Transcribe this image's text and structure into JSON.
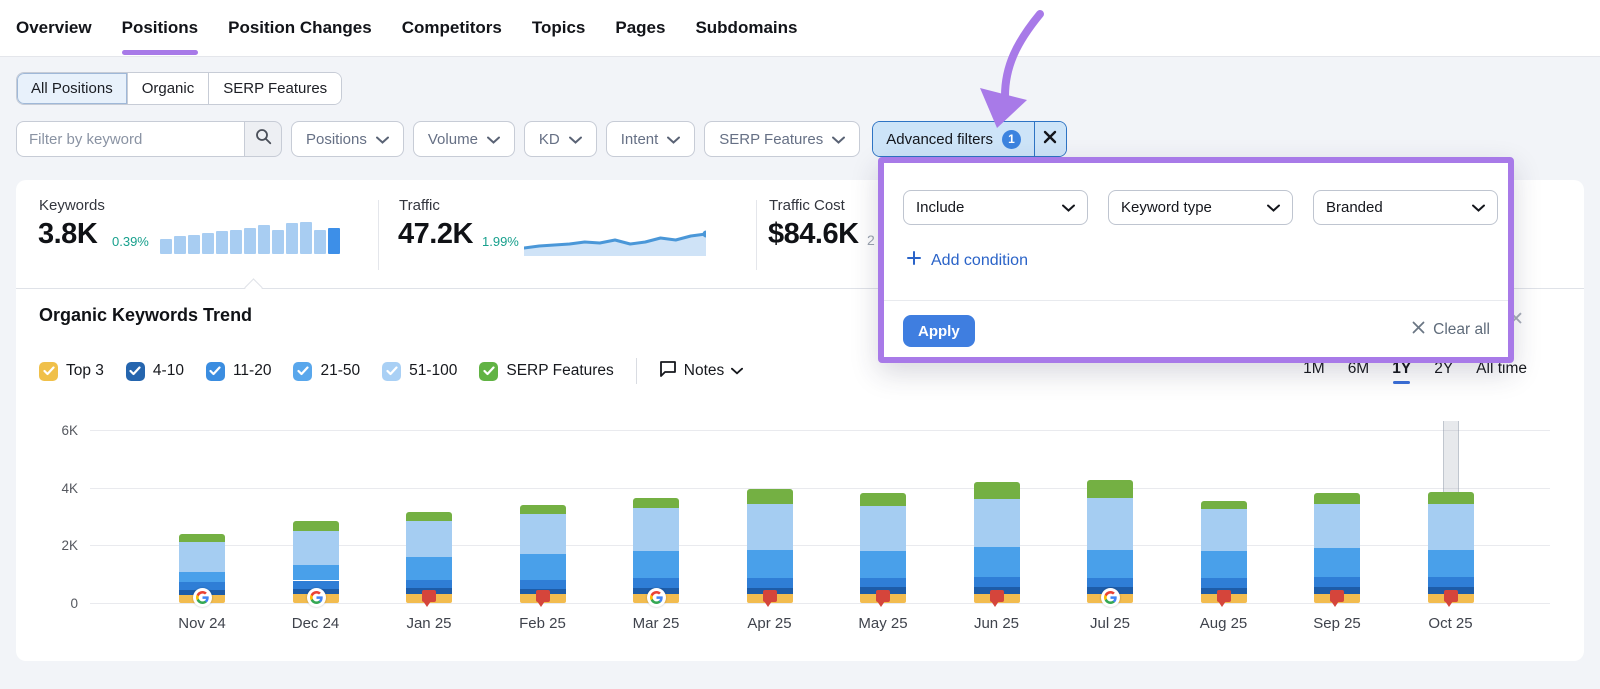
{
  "nav": {
    "items": [
      {
        "label": "Overview",
        "active": false
      },
      {
        "label": "Positions",
        "active": true
      },
      {
        "label": "Position Changes",
        "active": false
      },
      {
        "label": "Competitors",
        "active": false
      },
      {
        "label": "Topics",
        "active": false
      },
      {
        "label": "Pages",
        "active": false
      },
      {
        "label": "Subdomains",
        "active": false
      }
    ],
    "active_color": "#a87ae8"
  },
  "view_tabs": {
    "items": [
      {
        "label": "All Positions",
        "selected": true
      },
      {
        "label": "Organic",
        "selected": false
      },
      {
        "label": "SERP Features",
        "selected": false
      }
    ]
  },
  "filters": {
    "search": {
      "placeholder": "Filter by keyword",
      "value": ""
    },
    "dropdowns": [
      {
        "label": "Positions"
      },
      {
        "label": "Volume"
      },
      {
        "label": "KD"
      },
      {
        "label": "Intent"
      },
      {
        "label": "SERP Features"
      }
    ],
    "advanced": {
      "label": "Advanced filters",
      "count": "1"
    }
  },
  "stats": {
    "keywords": {
      "label": "Keywords",
      "value": "3.8K",
      "change": "0.39%",
      "change_color": "#18a08d",
      "spark_bar_heights": [
        15,
        18,
        19,
        21,
        23,
        24,
        26,
        29,
        24,
        31,
        32,
        24,
        26
      ],
      "spark_bar_color": "#a8cdf2",
      "spark_bar_last_color": "#3d8fe8"
    },
    "traffic": {
      "label": "Traffic",
      "value": "47.2K",
      "change": "1.99%",
      "change_color": "#18a08d",
      "spark_line_y": [
        14,
        13,
        12.5,
        12,
        11,
        11.5,
        10,
        12,
        11,
        9,
        10,
        8,
        7
      ],
      "spark_line_color": "#4a97d8",
      "spark_fill_color": "#cfe3f7"
    },
    "traffic_cost": {
      "label": "Traffic Cost",
      "value": "$84.6K",
      "partial_change": "2"
    }
  },
  "advanced_panel": {
    "operator": "Include",
    "field": "Keyword type",
    "value": "Branded",
    "add_condition_label": "Add condition",
    "apply_label": "Apply",
    "clear_all_label": "Clear all",
    "border_color": "#a87ae8"
  },
  "trend": {
    "title": "Organic Keywords Trend",
    "legend": [
      {
        "label": "Top 3",
        "color": "#f0c04a",
        "checked": true
      },
      {
        "label": "4-10",
        "color": "#2565ae",
        "checked": true
      },
      {
        "label": "11-20",
        "color": "#3b8de0",
        "checked": true
      },
      {
        "label": "21-50",
        "color": "#59a7ec",
        "checked": true
      },
      {
        "label": "51-100",
        "color": "#a9d0f5",
        "checked": true
      },
      {
        "label": "SERP Features",
        "color": "#61b344",
        "checked": true
      }
    ],
    "notes_label": "Notes",
    "ranges": [
      {
        "label": "1M",
        "active": false
      },
      {
        "label": "6M",
        "active": false
      },
      {
        "label": "1Y",
        "active": true
      },
      {
        "label": "2Y",
        "active": false
      },
      {
        "label": "All time",
        "active": false
      }
    ]
  },
  "chart_data": {
    "type": "bar",
    "stacked": true,
    "categories": [
      "Nov 24",
      "Dec 24",
      "Jan 25",
      "Feb 25",
      "Mar 25",
      "Apr 25",
      "May 25",
      "Jun 25",
      "Jul 25",
      "Aug 25",
      "Sep 25",
      "Oct 25"
    ],
    "series": [
      {
        "name": "Top 3",
        "color": "#f2bc4f",
        "values": [
          280,
          300,
          300,
          300,
          300,
          300,
          300,
          300,
          300,
          300,
          300,
          300
        ]
      },
      {
        "name": "4-10",
        "color": "#1d5ca8",
        "values": [
          180,
          200,
          220,
          200,
          220,
          220,
          250,
          250,
          250,
          220,
          250,
          250
        ]
      },
      {
        "name": "11-20",
        "color": "#2f7ed6",
        "values": [
          280,
          280,
          280,
          300,
          330,
          330,
          300,
          350,
          300,
          330,
          350,
          350
        ]
      },
      {
        "name": "21-50",
        "color": "#49a0ea",
        "values": [
          320,
          550,
          800,
          900,
          950,
          1000,
          950,
          1050,
          1000,
          950,
          1000,
          950
        ]
      },
      {
        "name": "51-100",
        "color": "#a5cdf2",
        "values": [
          1040,
          1170,
          1250,
          1400,
          1500,
          1600,
          1550,
          1650,
          1800,
          1450,
          1550,
          1600
        ]
      },
      {
        "name": "SERP Features",
        "color": "#74b043",
        "values": [
          300,
          350,
          300,
          300,
          350,
          500,
          450,
          600,
          600,
          300,
          350,
          400
        ]
      }
    ],
    "markers": [
      "google",
      "google",
      "flag",
      "flag",
      "google",
      "flag",
      "flag",
      "flag",
      "google",
      "flag",
      "flag",
      "flag"
    ],
    "highlighted_category_index": 11,
    "ylim": [
      0,
      6000
    ],
    "yticks": [
      {
        "label": "0",
        "value": 0
      },
      {
        "label": "2K",
        "value": 2000
      },
      {
        "label": "4K",
        "value": 4000
      },
      {
        "label": "6K",
        "value": 6000
      }
    ],
    "grid": true,
    "legend_position": "top-left"
  }
}
